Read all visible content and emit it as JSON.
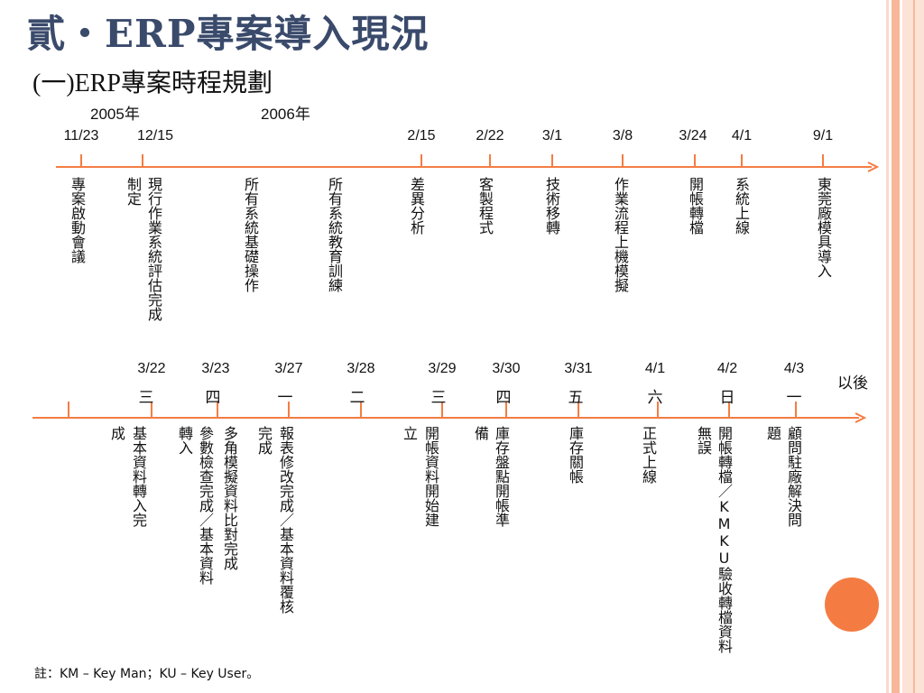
{
  "colors": {
    "accent": "#f47c43",
    "stripe_light": "#fbd9c9",
    "stripe_mid": "#f7b79a",
    "title": "#3a4a6b"
  },
  "title": "貳‧ERP專案導入現況",
  "subtitle": "(一)ERP專案時程規劃",
  "years": [
    "2005年",
    "2006年"
  ],
  "timeline1": {
    "dates": [
      "11/23",
      "12/15",
      "2/15",
      "2/22",
      "3/1",
      "3/8",
      "3/24",
      "4/1",
      "9/1"
    ],
    "labels": [
      "專案啟動會議",
      "現行作業系統評估完成",
      "制定",
      "所有系統基礎操作",
      "所有系統教育訓練",
      "差異分析",
      "客製程式",
      "技術移轉",
      "作業流程上機模擬",
      "開帳轉檔",
      "系統上線",
      "東莞廠模具導入"
    ]
  },
  "timeline2": {
    "dates": [
      "3/22",
      "3/23",
      "3/27",
      "3/28",
      "3/29",
      "3/30",
      "3/31",
      "4/1",
      "4/2",
      "4/3"
    ],
    "weekdays": [
      "三",
      "四",
      "一",
      "二",
      "三",
      "四",
      "五",
      "六",
      "日",
      "一"
    ],
    "later": "以後",
    "labels": [
      "基本資料轉入完",
      "成",
      "參數檢查完成／基本資料",
      "轉入",
      "多角模擬資料比對完成",
      "報表修改完成／基本資料覆核",
      "完成",
      "開帳資料開始建",
      "立",
      "庫存盤點開帳準",
      "備",
      "庫存關帳",
      "正式上線",
      "開帳轉檔／KMKU驗收轉檔資料",
      "無誤",
      "顧問駐廠解決問",
      "題"
    ]
  },
  "note": "註：KM – Key Man；KU – Key User。"
}
